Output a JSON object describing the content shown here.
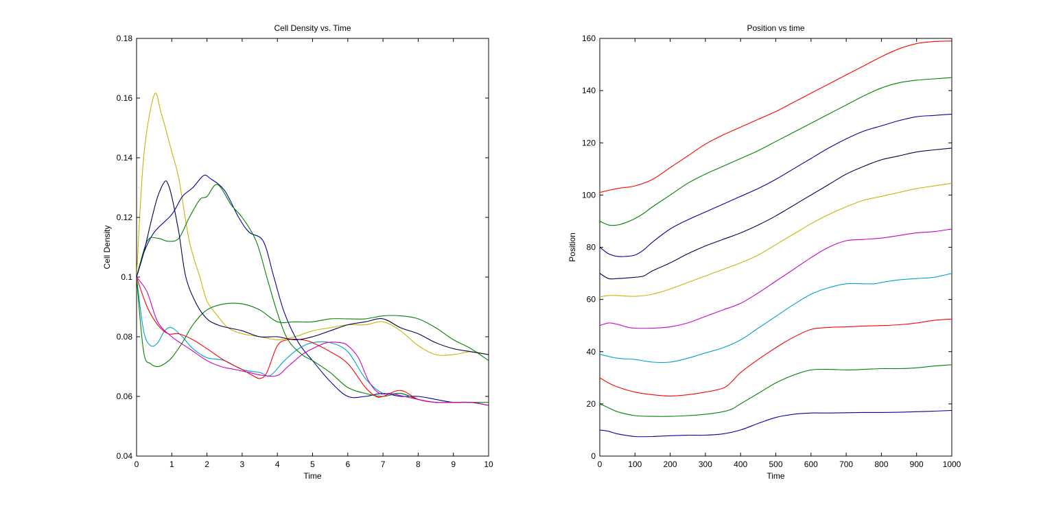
{
  "chart_data": [
    {
      "type": "line",
      "title": "Cell Density vs. Time",
      "xlabel": "Time",
      "ylabel": "Cell Density",
      "xlim": [
        0,
        10
      ],
      "ylim": [
        0.04,
        0.18
      ],
      "xticks": [
        0,
        1,
        2,
        3,
        4,
        5,
        6,
        7,
        8,
        9,
        10
      ],
      "yticks": [
        0.04,
        0.06,
        0.08,
        0.1,
        0.12,
        0.14,
        0.16,
        0.18
      ],
      "xtick_labels": [
        "0",
        "1",
        "2",
        "3",
        "4",
        "5",
        "6",
        "7",
        "8",
        "9",
        "10"
      ],
      "ytick_labels": [
        "0.04",
        "0.06",
        "0.08",
        "0.1",
        "0.12",
        "0.14",
        "0.16",
        "0.18"
      ],
      "grid": false,
      "series": [
        {
          "color": "#c8b400",
          "x": [
            0,
            0.2,
            0.5,
            0.7,
            1.0,
            1.2,
            1.5,
            1.8,
            2.0,
            2.3,
            2.6,
            3.0,
            3.5,
            4.0,
            4.5,
            5.0,
            5.5,
            6.0,
            6.5,
            7.0,
            7.5,
            8.0,
            8.5,
            9.0,
            9.5,
            10.0
          ],
          "y": [
            0.1,
            0.14,
            0.161,
            0.155,
            0.142,
            0.133,
            0.112,
            0.1,
            0.092,
            0.087,
            0.083,
            0.081,
            0.08,
            0.079,
            0.08,
            0.082,
            0.083,
            0.084,
            0.084,
            0.085,
            0.082,
            0.077,
            0.074,
            0.074,
            0.075,
            0.074
          ]
        },
        {
          "color": "#0000a0",
          "x": [
            0,
            0.2,
            0.5,
            1.0,
            1.3,
            1.6,
            1.9,
            2.1,
            2.5,
            2.9,
            3.2,
            3.6,
            3.9,
            4.2,
            4.6,
            5.0,
            5.5,
            6.0,
            6.5,
            7.0,
            7.5,
            8.0,
            8.5,
            9.0,
            9.5,
            10.0
          ],
          "y": [
            0.1,
            0.108,
            0.115,
            0.121,
            0.127,
            0.13,
            0.134,
            0.133,
            0.129,
            0.12,
            0.115,
            0.112,
            0.1,
            0.088,
            0.078,
            0.072,
            0.065,
            0.06,
            0.06,
            0.061,
            0.06,
            0.06,
            0.059,
            0.058,
            0.058,
            0.057
          ]
        },
        {
          "color": "#00a0c8",
          "x": [
            0,
            0.2,
            0.4,
            0.6,
            0.8,
            1.0,
            1.3,
            1.6,
            2.0,
            2.5,
            3.0,
            3.5,
            3.8,
            4.2,
            4.6,
            5.0,
            5.5,
            6.0,
            6.5,
            7.0,
            7.5,
            8.0,
            8.5,
            9.0,
            9.5,
            10.0
          ],
          "y": [
            0.1,
            0.082,
            0.077,
            0.078,
            0.082,
            0.083,
            0.08,
            0.076,
            0.073,
            0.072,
            0.069,
            0.068,
            0.067,
            0.072,
            0.076,
            0.078,
            0.078,
            0.075,
            0.066,
            0.061,
            0.061,
            0.059,
            0.058,
            0.058,
            0.058,
            0.057
          ]
        },
        {
          "color": "#008000",
          "x": [
            0,
            0.2,
            0.4,
            0.6,
            0.8,
            1.0,
            1.3,
            1.6,
            2.0,
            2.5,
            3.0,
            3.5,
            4.0,
            4.5,
            5.0,
            5.5,
            6.0,
            6.5,
            7.0,
            7.5,
            8.0,
            8.5,
            9.0,
            9.5,
            10.0
          ],
          "y": [
            0.1,
            0.075,
            0.071,
            0.07,
            0.071,
            0.073,
            0.078,
            0.084,
            0.089,
            0.091,
            0.091,
            0.089,
            0.085,
            0.085,
            0.085,
            0.086,
            0.086,
            0.086,
            0.087,
            0.087,
            0.086,
            0.083,
            0.079,
            0.076,
            0.072
          ]
        },
        {
          "color": "#008000",
          "x": [
            0,
            0.3,
            0.6,
            0.9,
            1.2,
            1.5,
            1.8,
            2.0,
            2.3,
            2.7,
            3.0,
            3.4,
            3.7,
            4.0,
            4.3,
            4.7,
            5.0,
            5.5,
            6.0,
            6.5,
            7.0,
            7.5,
            8.0,
            8.5,
            9.0,
            9.5,
            10.0
          ],
          "y": [
            0.1,
            0.112,
            0.113,
            0.112,
            0.113,
            0.12,
            0.126,
            0.127,
            0.131,
            0.124,
            0.12,
            0.112,
            0.1,
            0.088,
            0.079,
            0.074,
            0.072,
            0.068,
            0.063,
            0.061,
            0.06,
            0.061,
            0.059,
            0.058,
            0.058,
            0.058,
            0.058
          ]
        },
        {
          "color": "#ff0000",
          "x": [
            0,
            0.3,
            0.6,
            0.9,
            1.2,
            1.6,
            2.0,
            2.5,
            3.0,
            3.3,
            3.5,
            3.7,
            4.0,
            4.3,
            4.7,
            5.0,
            5.5,
            6.0,
            6.5,
            6.8,
            7.0,
            7.5,
            8.0,
            8.5,
            9.0,
            9.5,
            10.0
          ],
          "y": [
            0.1,
            0.09,
            0.084,
            0.081,
            0.081,
            0.079,
            0.076,
            0.072,
            0.069,
            0.067,
            0.066,
            0.068,
            0.077,
            0.079,
            0.079,
            0.078,
            0.075,
            0.071,
            0.063,
            0.06,
            0.06,
            0.062,
            0.059,
            0.058,
            0.058,
            0.058,
            0.057
          ]
        },
        {
          "color": "#c800c8",
          "x": [
            0,
            0.3,
            0.6,
            1.0,
            1.5,
            2.0,
            2.4,
            2.8,
            3.2,
            3.6,
            4.0,
            4.3,
            4.7,
            5.0,
            5.4,
            5.8,
            6.0,
            6.3,
            6.6,
            6.9,
            7.2,
            7.6,
            8.0,
            8.5,
            9.0,
            9.5,
            10.0
          ],
          "y": [
            0.1,
            0.095,
            0.085,
            0.08,
            0.076,
            0.072,
            0.07,
            0.069,
            0.068,
            0.067,
            0.067,
            0.07,
            0.074,
            0.076,
            0.078,
            0.078,
            0.077,
            0.073,
            0.065,
            0.061,
            0.061,
            0.06,
            0.059,
            0.058,
            0.058,
            0.058,
            0.057
          ]
        },
        {
          "color": "#000050",
          "x": [
            0,
            0.2,
            0.4,
            0.6,
            0.8,
            0.9,
            1.0,
            1.2,
            1.4,
            1.7,
            2.0,
            2.3,
            2.6,
            3.0,
            3.5,
            4.0,
            4.5,
            5.0,
            5.5,
            6.0,
            6.5,
            7.0,
            7.5,
            8.0,
            8.5,
            9.0,
            9.5,
            10.0
          ],
          "y": [
            0.1,
            0.108,
            0.118,
            0.127,
            0.132,
            0.131,
            0.127,
            0.115,
            0.1,
            0.091,
            0.086,
            0.084,
            0.083,
            0.082,
            0.08,
            0.08,
            0.079,
            0.08,
            0.082,
            0.084,
            0.085,
            0.086,
            0.083,
            0.081,
            0.078,
            0.076,
            0.075,
            0.074
          ]
        }
      ]
    },
    {
      "type": "line",
      "title": "Position vs time",
      "xlabel": "Time",
      "ylabel": "Position",
      "xlim": [
        0,
        1000
      ],
      "ylim": [
        0,
        160
      ],
      "xticks": [
        0,
        100,
        200,
        300,
        400,
        500,
        600,
        700,
        800,
        900,
        1000
      ],
      "yticks": [
        0,
        20,
        40,
        60,
        80,
        100,
        120,
        140,
        160
      ],
      "xtick_labels": [
        "0",
        "100",
        "200",
        "300",
        "400",
        "500",
        "600",
        "700",
        "800",
        "900",
        "1000"
      ],
      "ytick_labels": [
        "0",
        "20",
        "40",
        "60",
        "80",
        "100",
        "120",
        "140",
        "160"
      ],
      "grid": false,
      "series": [
        {
          "color": "#ff0000",
          "x": [
            0,
            50,
            100,
            150,
            200,
            250,
            300,
            350,
            400,
            450,
            500,
            550,
            600,
            650,
            700,
            750,
            800,
            850,
            900,
            950,
            1000
          ],
          "y": [
            101,
            102.5,
            103.5,
            106,
            110.5,
            115,
            119.5,
            123,
            126,
            129,
            132,
            135.5,
            139,
            142.5,
            146,
            149.5,
            153,
            156,
            158,
            158.8,
            159
          ]
        },
        {
          "color": "#008000",
          "x": [
            0,
            25,
            50,
            75,
            100,
            125,
            150,
            200,
            250,
            300,
            350,
            400,
            450,
            500,
            550,
            600,
            650,
            700,
            750,
            800,
            850,
            900,
            950,
            1000
          ],
          "y": [
            90,
            88.5,
            88.5,
            89.5,
            91,
            93,
            95.5,
            100,
            104.5,
            108,
            111,
            114,
            117,
            120.5,
            124,
            127.5,
            131,
            134.5,
            138,
            141,
            143,
            144,
            144.5,
            145
          ]
        },
        {
          "color": "#0000a0",
          "x": [
            0,
            25,
            50,
            75,
            100,
            125,
            150,
            200,
            250,
            300,
            350,
            400,
            450,
            500,
            550,
            600,
            650,
            700,
            750,
            800,
            850,
            900,
            950,
            1000
          ],
          "y": [
            80,
            77.5,
            76.5,
            76.5,
            77,
            79,
            82,
            87,
            90.5,
            93.5,
            96.5,
            99.5,
            102.5,
            106,
            110,
            114,
            118,
            121.5,
            124.5,
            126.5,
            128.5,
            130,
            130.5,
            131
          ]
        },
        {
          "color": "#000050",
          "x": [
            0,
            25,
            50,
            100,
            125,
            150,
            200,
            250,
            300,
            350,
            400,
            450,
            500,
            550,
            600,
            650,
            700,
            750,
            800,
            850,
            900,
            950,
            1000
          ],
          "y": [
            70,
            68,
            68,
            68.5,
            69,
            71,
            74,
            77.5,
            80.5,
            83,
            85.5,
            88.5,
            92,
            96,
            100,
            104,
            108,
            111,
            113.5,
            115,
            116.5,
            117.3,
            118
          ]
        },
        {
          "color": "#c8b400",
          "x": [
            0,
            25,
            50,
            100,
            150,
            200,
            250,
            300,
            350,
            400,
            450,
            500,
            550,
            600,
            650,
            700,
            750,
            800,
            850,
            900,
            950,
            1000
          ],
          "y": [
            61,
            61.5,
            61.5,
            61.2,
            62,
            64,
            66.5,
            69,
            71.5,
            74,
            77,
            81,
            85,
            89,
            92.5,
            95.5,
            98,
            99.5,
            101,
            102.5,
            103.5,
            104.5
          ]
        },
        {
          "color": "#c800c8",
          "x": [
            0,
            25,
            50,
            75,
            100,
            150,
            200,
            250,
            300,
            350,
            400,
            450,
            500,
            550,
            600,
            650,
            700,
            750,
            800,
            850,
            900,
            950,
            1000
          ],
          "y": [
            50,
            51,
            50.5,
            49.5,
            49,
            49,
            49.5,
            51,
            53.5,
            56,
            58.5,
            62.5,
            67,
            71.5,
            76,
            80,
            82.5,
            83,
            83.5,
            84.5,
            85.5,
            86,
            87
          ]
        },
        {
          "color": "#00a0c8",
          "x": [
            0,
            50,
            100,
            150,
            200,
            250,
            300,
            350,
            400,
            450,
            500,
            550,
            600,
            650,
            700,
            750,
            780,
            800,
            850,
            900,
            950,
            1000
          ],
          "y": [
            39,
            37.5,
            37,
            36,
            36,
            37.5,
            39.5,
            41.5,
            44.5,
            49,
            53.5,
            58,
            62,
            64.5,
            66,
            66,
            66,
            66.5,
            67.5,
            68,
            68.5,
            70
          ]
        },
        {
          "color": "#ff0000",
          "x": [
            0,
            25,
            50,
            100,
            150,
            200,
            250,
            300,
            350,
            375,
            400,
            450,
            500,
            550,
            600,
            650,
            700,
            750,
            800,
            850,
            900,
            950,
            1000
          ],
          "y": [
            30,
            28,
            26.5,
            24.5,
            23.5,
            23,
            23.5,
            24.5,
            26,
            28.5,
            32,
            37,
            41.5,
            45.5,
            48.5,
            49.3,
            49.5,
            49.8,
            50,
            50.3,
            51,
            52,
            52.5
          ]
        },
        {
          "color": "#008000",
          "x": [
            0,
            25,
            50,
            100,
            150,
            200,
            250,
            300,
            350,
            375,
            400,
            450,
            500,
            550,
            600,
            650,
            700,
            750,
            800,
            850,
            900,
            950,
            1000
          ],
          "y": [
            20,
            18.5,
            17,
            15.5,
            15.2,
            15.2,
            15.5,
            16,
            17,
            18,
            20,
            24,
            28,
            31,
            33,
            33.2,
            33,
            33.2,
            33.5,
            33.5,
            33.8,
            34.5,
            35
          ]
        },
        {
          "color": "#0000a0",
          "x": [
            0,
            25,
            50,
            100,
            150,
            200,
            250,
            300,
            350,
            400,
            450,
            500,
            550,
            600,
            650,
            700,
            750,
            800,
            850,
            900,
            950,
            1000
          ],
          "y": [
            10,
            9.5,
            8.5,
            7.5,
            7.5,
            7.8,
            8,
            8,
            8.5,
            10,
            12.5,
            14.8,
            16,
            16.5,
            16.5,
            16.6,
            16.7,
            16.7,
            16.8,
            17,
            17.2,
            17.5
          ]
        }
      ]
    }
  ]
}
